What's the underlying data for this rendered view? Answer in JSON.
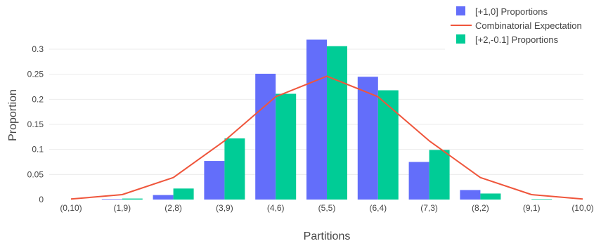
{
  "chart_data": {
    "type": "bar",
    "categories": [
      "(0,10)",
      "(1,9)",
      "(2,8)",
      "(3,9)",
      "(4,6)",
      "(5,5)",
      "(6,4)",
      "(7,3)",
      "(8,2)",
      "(9,1)",
      "(10,0)"
    ],
    "series": [
      {
        "name": "[+1,0] Proportions",
        "type": "bar",
        "color": "#636efa",
        "values": [
          0.0,
          0.001,
          0.009,
          0.077,
          0.251,
          0.319,
          0.245,
          0.075,
          0.019,
          0.0,
          0.0
        ]
      },
      {
        "name": "Combinatorial Expectation",
        "type": "line",
        "color": "#ef553b",
        "values": [
          0.001,
          0.0098,
          0.0439,
          0.1172,
          0.2051,
          0.2461,
          0.2051,
          0.1172,
          0.0439,
          0.0098,
          0.001
        ]
      },
      {
        "name": "[+2,-0.1] Proportions",
        "type": "bar",
        "color": "#00cc96",
        "values": [
          0.0,
          0.002,
          0.022,
          0.122,
          0.211,
          0.306,
          0.218,
          0.099,
          0.012,
          0.001,
          0.0
        ]
      }
    ],
    "xlabel": "Partitions",
    "ylabel": "Proportion",
    "ylim": [
      0,
      0.34
    ],
    "yticks": [
      0,
      0.05,
      0.1,
      0.15,
      0.2,
      0.25,
      0.3
    ],
    "ytick_labels": [
      "0",
      "0.05",
      "0.1",
      "0.15",
      "0.2",
      "0.25",
      "0.3"
    ],
    "grid": true,
    "legend_position": "top-right"
  }
}
